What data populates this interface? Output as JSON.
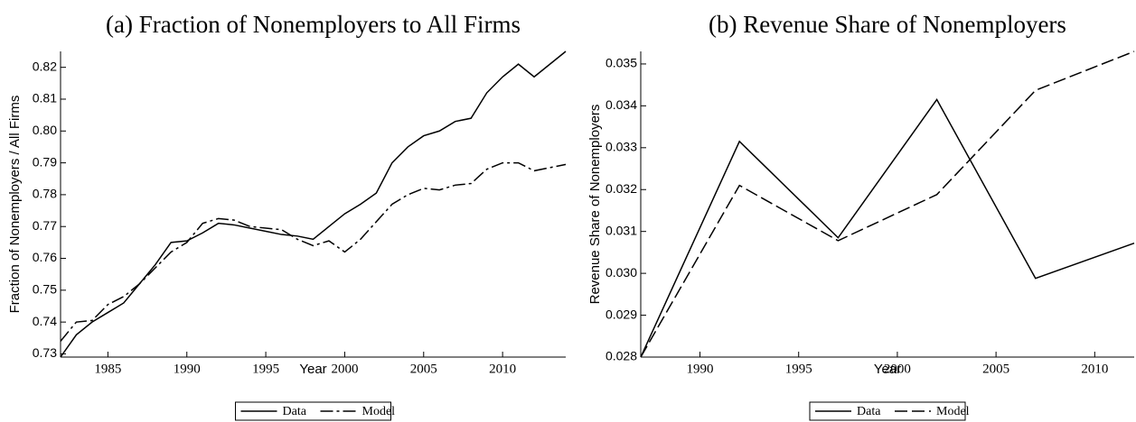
{
  "chart_data": [
    {
      "type": "line",
      "title": "(a) Fraction of Nonemployers to All Firms",
      "xlabel": "Year",
      "ylabel": "Fraction of Nonemployers / All Firms",
      "x": [
        1982,
        1983,
        1984,
        1985,
        1986,
        1987,
        1988,
        1989,
        1990,
        1991,
        1992,
        1993,
        1994,
        1995,
        1996,
        1997,
        1998,
        1999,
        2000,
        2001,
        2002,
        2003,
        2004,
        2005,
        2006,
        2007,
        2008,
        2009,
        2010,
        2011,
        2012,
        2013,
        2014
      ],
      "series": [
        {
          "name": "Data",
          "color": "#000000",
          "linestyle": "solid",
          "values": [
            0.729,
            0.736,
            0.74,
            0.743,
            0.746,
            0.752,
            0.758,
            0.765,
            0.7655,
            0.768,
            0.771,
            0.7705,
            0.7695,
            0.7685,
            0.7675,
            0.767,
            0.766,
            0.77,
            0.774,
            0.777,
            0.7805,
            0.79,
            0.795,
            0.7985,
            0.8,
            0.803,
            0.804,
            0.812,
            0.817,
            0.821,
            0.817,
            0.821,
            0.825
          ]
        },
        {
          "name": "Model",
          "color": "#000000",
          "linestyle": "dashdot",
          "values": [
            0.734,
            0.74,
            0.7405,
            0.7455,
            0.748,
            0.752,
            0.757,
            0.762,
            0.765,
            0.771,
            0.7725,
            0.772,
            0.77,
            0.7695,
            0.769,
            0.766,
            0.764,
            0.7655,
            0.762,
            0.766,
            0.7715,
            0.777,
            0.78,
            0.782,
            0.7815,
            0.783,
            0.7835,
            0.788,
            0.79,
            0.79,
            0.7875,
            0.7885,
            0.7895
          ]
        }
      ],
      "xlim": [
        1982,
        2014
      ],
      "xticks": [
        1985,
        1990,
        1995,
        2000,
        2005,
        2010
      ],
      "ylim": [
        0.729,
        0.825
      ],
      "yticks": [
        0.73,
        0.74,
        0.75,
        0.76,
        0.77,
        0.78,
        0.79,
        {
          "value": 0.8,
          "label": "0.80"
        },
        0.81,
        0.82
      ],
      "legend": "bottom"
    },
    {
      "type": "line",
      "title": "(b) Revenue Share of Nonemployers",
      "xlabel": "Year",
      "ylabel": "Revenue Share of Nonemployers",
      "x": [
        1987,
        1992,
        1997,
        2002,
        2007,
        2012
      ],
      "series": [
        {
          "name": "Data",
          "color": "#000000",
          "linestyle": "solid",
          "values": [
            0.028,
            0.03315,
            0.03085,
            0.03415,
            0.02988,
            0.03072
          ]
        },
        {
          "name": "Model",
          "color": "#000000",
          "linestyle": "dashed",
          "values": [
            0.028,
            0.0321,
            0.03078,
            0.03188,
            0.03437,
            0.0353
          ]
        }
      ],
      "xlim": [
        1987,
        2012
      ],
      "xticks": [
        1990,
        1995,
        2000,
        2005,
        2010
      ],
      "ylim": [
        0.028,
        0.0353
      ],
      "yticks": [
        0.028,
        0.029,
        {
          "value": 0.03,
          "label": "0.030"
        },
        0.031,
        0.032,
        0.033,
        0.034,
        0.035
      ],
      "legend": "bottom"
    }
  ]
}
